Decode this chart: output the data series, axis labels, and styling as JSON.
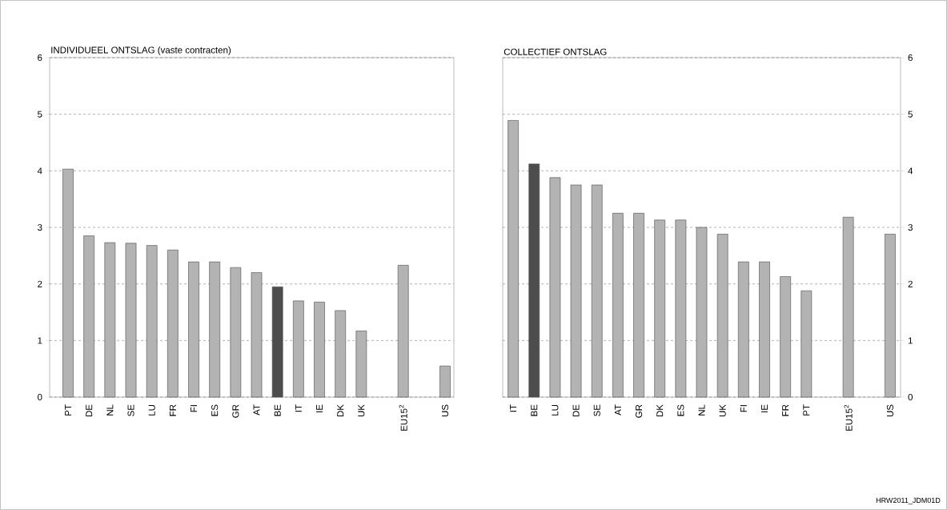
{
  "chart_data": [
    {
      "type": "bar",
      "title": "INDIVIDUEEL ONTSLAG (vaste contracten)",
      "categories": [
        "PT",
        "DE",
        "NL",
        "SE",
        "LU",
        "FR",
        "FI",
        "ES",
        "GR",
        "AT",
        "BE",
        "IT",
        "IE",
        "DK",
        "UK",
        null,
        "EU15$^{2}$",
        null,
        "US"
      ],
      "values": [
        4.03,
        2.85,
        2.73,
        2.72,
        2.68,
        2.6,
        2.39,
        2.39,
        2.29,
        2.2,
        1.95,
        1.7,
        1.68,
        1.53,
        1.17,
        null,
        2.33,
        null,
        0.55
      ],
      "colors": [
        "#b3b3b3",
        "#b3b3b3",
        "#b3b3b3",
        "#b3b3b3",
        "#b3b3b3",
        "#b3b3b3",
        "#b3b3b3",
        "#b3b3b3",
        "#b3b3b3",
        "#b3b3b3",
        "#4d4d4d",
        "#b3b3b3",
        "#b3b3b3",
        "#b3b3b3",
        "#b3b3b3",
        "#b3b3b3",
        "#b3b3b3",
        "#b3b3b3",
        "#b3b3b3"
      ],
      "ylim": [
        0,
        6
      ],
      "yticks": [
        0,
        1,
        2,
        3,
        4,
        5,
        6
      ],
      "grid": "y"
    },
    {
      "type": "bar",
      "title": "COLLECTIEF ONTSLAG",
      "categories": [
        "IT",
        "BE",
        "LU",
        "DE",
        "SE",
        "AT",
        "GR",
        "DK",
        "ES",
        "NL",
        "UK",
        "FI",
        "IE",
        "FR",
        "PT",
        null,
        "EU15$^{2}$",
        null,
        "US"
      ],
      "values": [
        4.89,
        4.12,
        3.88,
        3.75,
        3.75,
        3.25,
        3.25,
        3.13,
        3.13,
        3.0,
        2.88,
        2.39,
        2.39,
        2.13,
        1.88,
        null,
        3.18,
        null,
        2.88
      ],
      "colors": [
        "#b3b3b3",
        "#4d4d4d",
        "#b3b3b3",
        "#b3b3b3",
        "#b3b3b3",
        "#b3b3b3",
        "#b3b3b3",
        "#b3b3b3",
        "#b3b3b3",
        "#b3b3b3",
        "#b3b3b3",
        "#b3b3b3",
        "#b3b3b3",
        "#b3b3b3",
        "#b3b3b3",
        "#b3b3b3",
        "#b3b3b3",
        "#b3b3b3",
        "#b3b3b3"
      ],
      "ylim": [
        0,
        6
      ],
      "yticks": [
        0,
        1,
        2,
        3,
        4,
        5,
        6
      ],
      "grid": "y",
      "annotations": [
        "HRW2011_JDM01D"
      ]
    }
  ]
}
